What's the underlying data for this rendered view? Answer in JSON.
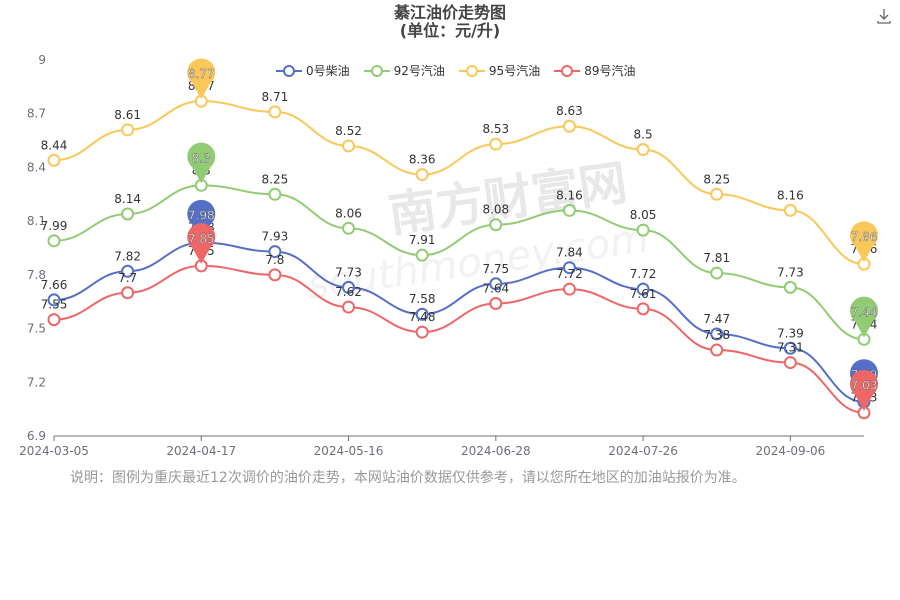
{
  "chart_data": {
    "type": "line",
    "title": "綦江油价走势图",
    "subtitle": "(单位：元/升)",
    "x_tick_labels": [
      "2024-03-05",
      "2024-04-17",
      "2024-05-16",
      "2024-06-28",
      "2024-07-26",
      "2024-09-06"
    ],
    "ylim": [
      6.9,
      9
    ],
    "y_ticks": [
      "6.9",
      "7.2",
      "7.5",
      "7.8",
      "8.1",
      "8.4",
      "8.7",
      "9"
    ],
    "grid": false,
    "legend_position": "top-center",
    "series": [
      {
        "name": "0号柴油",
        "color": "#5470c6",
        "values": [
          7.66,
          7.82,
          7.98,
          7.93,
          7.73,
          7.58,
          7.75,
          7.84,
          7.72,
          7.47,
          7.39,
          7.09
        ],
        "max": 7.98,
        "min": 7.09
      },
      {
        "name": "92号汽油",
        "color": "#91cc75",
        "values": [
          7.99,
          8.14,
          8.3,
          8.25,
          8.06,
          7.91,
          8.08,
          8.16,
          8.05,
          7.81,
          7.73,
          7.44
        ],
        "max": 8.3,
        "min": 7.44
      },
      {
        "name": "95号汽油",
        "color": "#fac858",
        "values": [
          8.44,
          8.61,
          8.77,
          8.71,
          8.52,
          8.36,
          8.53,
          8.63,
          8.5,
          8.25,
          8.16,
          7.86
        ],
        "max": 8.77,
        "min": 7.86
      },
      {
        "name": "89号汽油",
        "color": "#ee6666",
        "values": [
          7.55,
          7.7,
          7.85,
          7.8,
          7.62,
          7.48,
          7.64,
          7.72,
          7.61,
          7.38,
          7.31,
          7.03
        ],
        "max": 7.85,
        "min": 7.03
      }
    ]
  },
  "watermark": "南方财富网",
  "watermark_sub": "southmoney.com",
  "note": "说明：图例为重庆最近12次调价的油价走势，本网站油价数据仅供参考，请以您所在地区的加油站报价为准。",
  "icons": {
    "download": "download-icon"
  }
}
